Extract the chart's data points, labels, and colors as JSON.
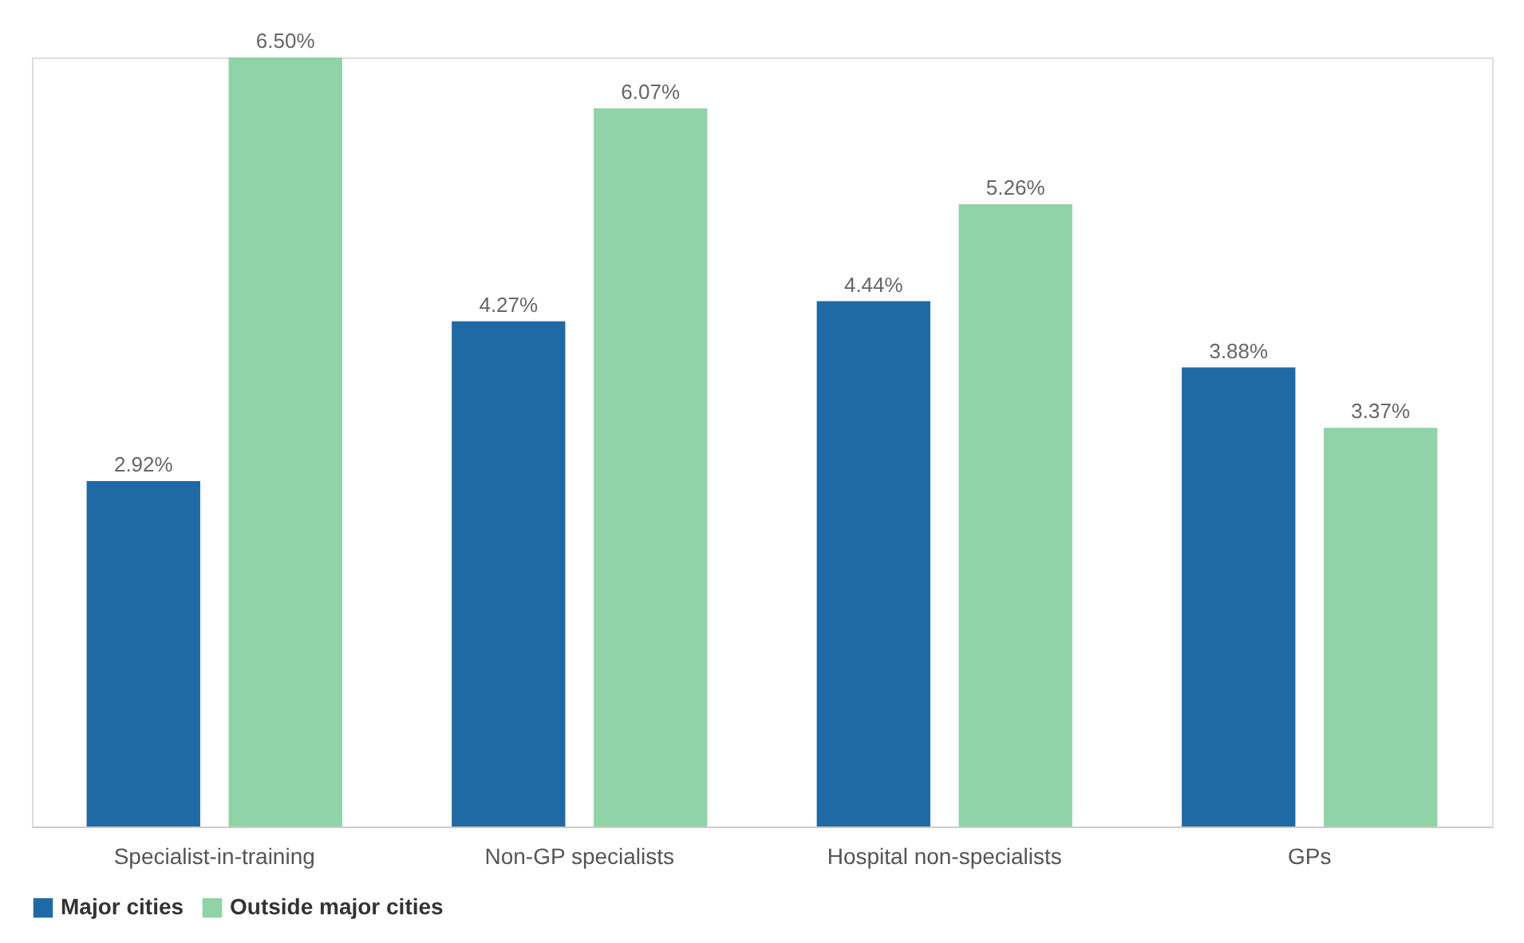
{
  "chart_data": {
    "type": "bar",
    "categories": [
      "Specialist-in-training",
      "Non-GP specialists",
      "Hospital non-specialists",
      "GPs"
    ],
    "series": [
      {
        "name": "Major cities",
        "color": "#1f6aa5",
        "values": [
          2.92,
          4.27,
          4.44,
          3.88
        ],
        "value_labels": [
          "2.92%",
          "4.27%",
          "4.44%",
          "3.88%"
        ]
      },
      {
        "name": "Outside major cities",
        "color": "#8fd3a6",
        "values": [
          6.5,
          6.07,
          5.26,
          3.37
        ],
        "value_labels": [
          "6.50%",
          "6.07%",
          "5.26%",
          "3.37%"
        ]
      }
    ],
    "legend": "bottom",
    "grid": false,
    "tick_labels": "x"
  }
}
